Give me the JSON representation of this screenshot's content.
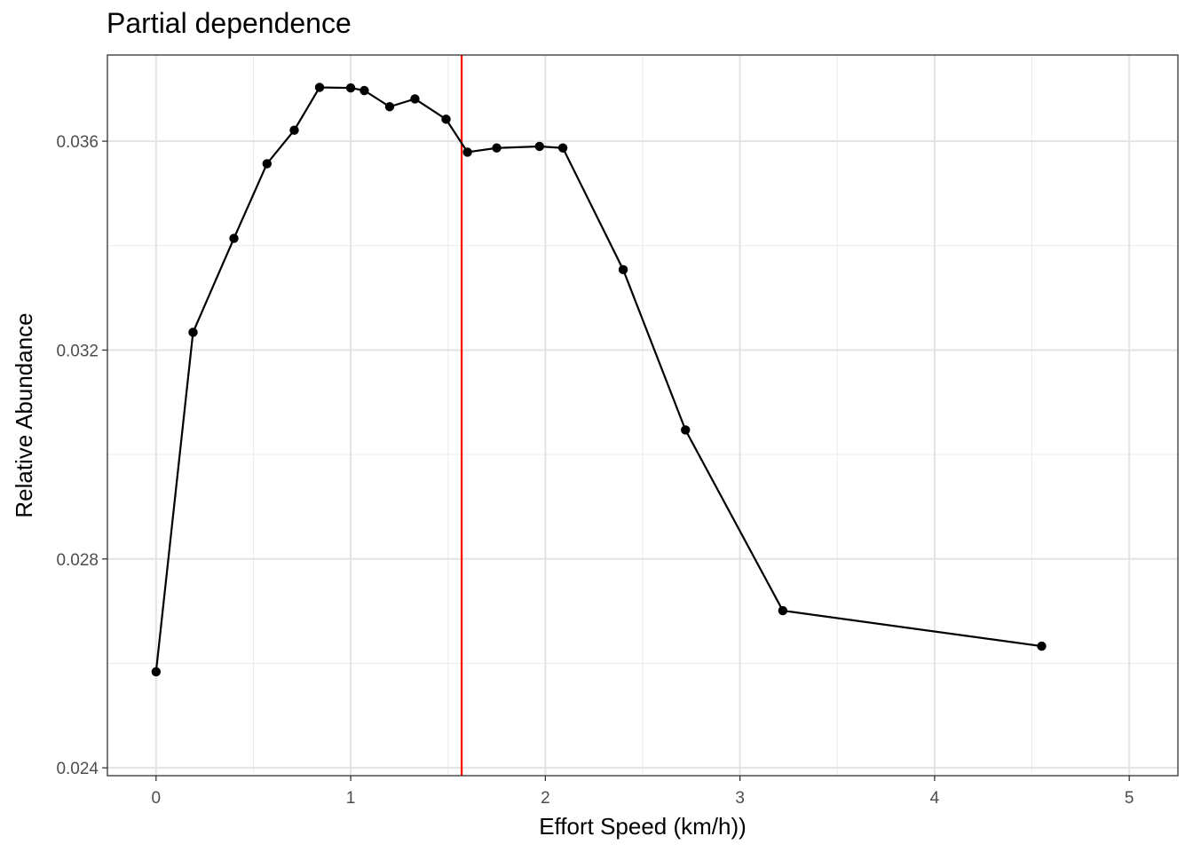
{
  "chart_data": {
    "type": "line",
    "title": "Partial dependence",
    "xlabel": "Effort Speed (km/h))",
    "ylabel": "Relative Abundance",
    "xlim": [
      -0.25,
      5.25
    ],
    "ylim": [
      0.02385,
      0.03765
    ],
    "x_ticks": [
      0,
      1,
      2,
      3,
      4,
      5
    ],
    "x_tick_labels": [
      "0",
      "1",
      "2",
      "3",
      "4",
      "5"
    ],
    "y_ticks": [
      0.024,
      0.028,
      0.032,
      0.036
    ],
    "y_tick_labels": [
      "0.024",
      "0.028",
      "0.032",
      "0.036"
    ],
    "grid": true,
    "vline": {
      "x": 1.57,
      "color": "#ff0000"
    },
    "series": [
      {
        "color": "#000000",
        "points": [
          {
            "x": 0.0,
            "y": 0.02584
          },
          {
            "x": 0.19,
            "y": 0.03234
          },
          {
            "x": 0.4,
            "y": 0.03414
          },
          {
            "x": 0.57,
            "y": 0.03557
          },
          {
            "x": 0.71,
            "y": 0.03621
          },
          {
            "x": 0.84,
            "y": 0.03703
          },
          {
            "x": 1.0,
            "y": 0.03702
          },
          {
            "x": 1.07,
            "y": 0.03697
          },
          {
            "x": 1.2,
            "y": 0.03666
          },
          {
            "x": 1.33,
            "y": 0.03681
          },
          {
            "x": 1.49,
            "y": 0.03642
          },
          {
            "x": 1.6,
            "y": 0.03579
          },
          {
            "x": 1.75,
            "y": 0.03587
          },
          {
            "x": 1.97,
            "y": 0.0359
          },
          {
            "x": 2.09,
            "y": 0.03587
          },
          {
            "x": 2.4,
            "y": 0.03354
          },
          {
            "x": 2.72,
            "y": 0.03047
          },
          {
            "x": 3.22,
            "y": 0.02701
          },
          {
            "x": 4.55,
            "y": 0.02633
          }
        ]
      }
    ]
  }
}
